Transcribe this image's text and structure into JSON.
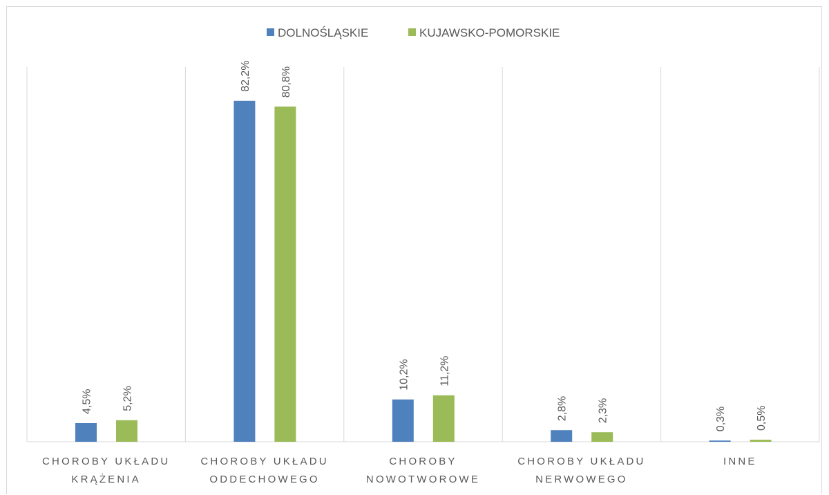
{
  "chart_data": {
    "type": "bar",
    "categories": [
      [
        "CHOROBY UKŁADU",
        "KRĄŻENIA"
      ],
      [
        "CHOROBY UKŁADU",
        "ODDECHOWEGO"
      ],
      [
        "CHOROBY",
        "NOWOTWOROWE"
      ],
      [
        "CHOROBY UKŁADU",
        "NERWOWEGO"
      ],
      [
        "INNE"
      ]
    ],
    "series": [
      {
        "name": "DOLNOŚLĄSKIE",
        "color": "#4f81bd",
        "values": [
          4.5,
          82.2,
          10.2,
          2.8,
          0.3
        ],
        "labels": [
          "4,5%",
          "82,2%",
          "10,2%",
          "2,8%",
          "0,3%"
        ]
      },
      {
        "name": "KUJAWSKO-POMORSKIE",
        "color": "#9bbb59",
        "values": [
          5.2,
          80.8,
          11.2,
          2.3,
          0.5
        ],
        "labels": [
          "5,2%",
          "80,8%",
          "11,2%",
          "2,3%",
          "0,5%"
        ]
      }
    ],
    "ylim": [
      0,
      100
    ],
    "legend_position": "top",
    "gridlines": "vertical category separators",
    "data_labels": "rotated, above bars"
  }
}
